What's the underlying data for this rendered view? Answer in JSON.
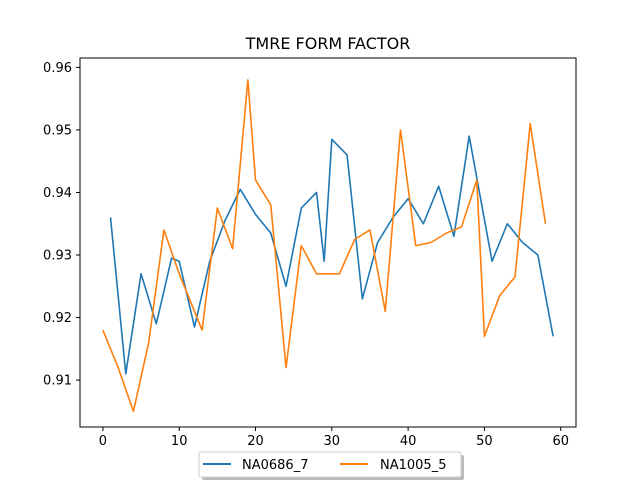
{
  "chart_data": {
    "type": "line",
    "title": "TMRE FORM FACTOR",
    "xlabel": "",
    "ylabel": "",
    "xlim": [
      -3,
      62
    ],
    "ylim": [
      0.9025,
      0.9615
    ],
    "xticks": [
      0,
      10,
      20,
      30,
      40,
      50,
      60
    ],
    "yticks": [
      0.91,
      0.92,
      0.93,
      0.94,
      0.95,
      0.96
    ],
    "xtick_labels": [
      "0",
      "10",
      "20",
      "30",
      "40",
      "50",
      "60"
    ],
    "ytick_labels": [
      "0.91",
      "0.92",
      "0.93",
      "0.94",
      "0.95",
      "0.96"
    ],
    "grid": false,
    "legend_position": "bottom-center (below axes)",
    "series": [
      {
        "name": "NA0686_7",
        "color": "#1f77b4",
        "x": [
          1,
          3,
          5,
          7,
          9,
          10,
          12,
          14,
          16,
          18,
          20,
          22,
          24,
          26,
          28,
          29,
          30,
          32,
          34,
          36,
          38,
          40,
          42,
          44,
          46,
          48,
          51,
          53,
          55,
          57,
          59
        ],
        "y": [
          0.936,
          0.911,
          0.927,
          0.919,
          0.9295,
          0.929,
          0.9185,
          0.929,
          0.9355,
          0.9405,
          0.9365,
          0.9335,
          0.925,
          0.9375,
          0.94,
          0.929,
          0.9485,
          0.946,
          0.923,
          0.932,
          0.936,
          0.939,
          0.935,
          0.941,
          0.933,
          0.949,
          0.929,
          0.935,
          0.932,
          0.93,
          0.917
        ]
      },
      {
        "name": "NA1005_5",
        "color": "#ff7f0e",
        "x": [
          0,
          2,
          4,
          6,
          8,
          10,
          13,
          15,
          17,
          19,
          20,
          22,
          24,
          26,
          28,
          31,
          33,
          35,
          37,
          39,
          41,
          43,
          45,
          47,
          49,
          50,
          52,
          54,
          56,
          58
        ],
        "y": [
          0.918,
          0.912,
          0.905,
          0.916,
          0.934,
          0.927,
          0.918,
          0.9375,
          0.931,
          0.958,
          0.942,
          0.938,
          0.912,
          0.9315,
          0.927,
          0.927,
          0.9325,
          0.934,
          0.921,
          0.95,
          0.9315,
          0.932,
          0.9335,
          0.9345,
          0.942,
          0.917,
          0.9235,
          0.9265,
          0.951,
          0.935
        ]
      }
    ]
  }
}
